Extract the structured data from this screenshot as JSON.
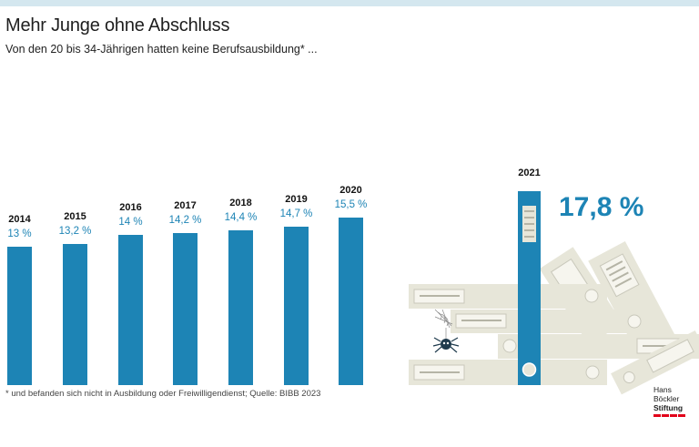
{
  "title": "Mehr Junge ohne Abschluss",
  "subtitle": "Von den 20 bis 34-Jährigen hatten keine Berufsausbildung* ...",
  "footnote": "* und befanden sich nicht in Ausbildung oder Freiwilligendienst; Quelle: BIBB 2023",
  "logo": {
    "line1": "Hans Böckler",
    "line2": "Stiftung"
  },
  "colors": {
    "bar": "#1d84b5",
    "binder": "#e7e6d9",
    "topbar": "#d4e7ef"
  },
  "chart_data": {
    "type": "bar",
    "title": "Mehr Junge ohne Abschluss",
    "subtitle": "Von den 20 bis 34-Jährigen hatten keine Berufsausbildung* ...",
    "categories": [
      "2014",
      "2015",
      "2016",
      "2017",
      "2018",
      "2019",
      "2020",
      "2021"
    ],
    "values": [
      13,
      13.2,
      14,
      14.2,
      14.4,
      14.7,
      15.5,
      17.8
    ],
    "value_labels": [
      "13 %",
      "13,2 %",
      "14 %",
      "14,2 %",
      "14,4 %",
      "14,7 %",
      "15,5 %",
      "17,8 %"
    ],
    "unit": "%",
    "xlabel": "",
    "ylabel": "",
    "grid": false,
    "legend": "none"
  }
}
